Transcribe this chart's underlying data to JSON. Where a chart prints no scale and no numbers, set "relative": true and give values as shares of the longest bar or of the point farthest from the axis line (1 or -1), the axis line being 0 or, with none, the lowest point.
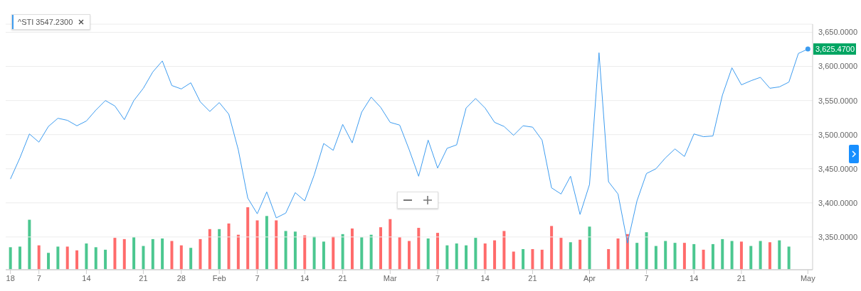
{
  "chart_data": [
    {
      "type": "line",
      "categories": [
        "18",
        null,
        null,
        "7",
        null,
        null,
        null,
        null,
        "14",
        null,
        null,
        null,
        null,
        null,
        "21",
        null,
        null,
        null,
        "28",
        null,
        null,
        null,
        "Feb",
        null,
        null,
        null,
        "7",
        null,
        null,
        null,
        null,
        "14",
        null,
        null,
        null,
        "21",
        null,
        null,
        null,
        null,
        "Mar",
        null,
        null,
        null,
        null,
        "7",
        null,
        null,
        null,
        null,
        "14",
        null,
        null,
        null,
        null,
        "21",
        null,
        null,
        null,
        null,
        null,
        "Apr",
        null,
        null,
        null,
        null,
        null,
        "7",
        null,
        null,
        null,
        null,
        "14",
        null,
        null,
        null,
        null,
        "21",
        null,
        null,
        null,
        null,
        null,
        null,
        "May"
      ],
      "series": [
        {
          "name": "^STI 3547.2300",
          "color": "#3d9cf0",
          "values": [
            3435,
            3466,
            3501,
            3489,
            3512,
            3524,
            3521,
            3513,
            3520,
            3536,
            3550,
            3542,
            3522,
            3550,
            3568,
            3592,
            3608,
            3572,
            3567,
            3576,
            3548,
            3534,
            3547,
            3530,
            3478,
            3407,
            3384,
            3416,
            3378,
            3385,
            3415,
            3403,
            3441,
            3487,
            3477,
            3515,
            3488,
            3533,
            3555,
            3540,
            3518,
            3514,
            3478,
            3439,
            3492,
            3451,
            3480,
            3485,
            3539,
            3553,
            3539,
            3518,
            3512,
            3499,
            3513,
            3511,
            3492,
            3422,
            3413,
            3439,
            3383,
            3427,
            3620,
            3431,
            3413,
            3341,
            3403,
            3443,
            3450,
            3466,
            3479,
            3468,
            3501,
            3497,
            3498,
            3558,
            3598,
            3573,
            3579,
            3584,
            3568,
            3570,
            3577,
            3619,
            3625.47
          ]
        }
      ],
      "ylim": [
        3302,
        3662
      ],
      "yticks": [
        {
          "value": 3350,
          "label": "3,350.0000"
        },
        {
          "value": 3400,
          "label": "3,400.0000"
        },
        {
          "value": 3450,
          "label": "3,450.0000"
        },
        {
          "value": 3500,
          "label": "3,500.0000"
        },
        {
          "value": 3550,
          "label": "3,550.0000"
        },
        {
          "value": 3600,
          "label": "3,600.0000"
        },
        {
          "value": 3650,
          "label": "3,650.0000"
        }
      ],
      "annotations": [
        {
          "text": "3,625.4700",
          "x": "May",
          "y": 3625.47
        }
      ],
      "grid": "y",
      "legend": "top left"
    },
    {
      "type": "bar",
      "relative": true,
      "categories": [
        null,
        null,
        null,
        null,
        null,
        null,
        null,
        null,
        null,
        null,
        null,
        null,
        null,
        null,
        null,
        null,
        null,
        null,
        null,
        null,
        null,
        null,
        null,
        null,
        null,
        null,
        null,
        null,
        null,
        null,
        null,
        null,
        null,
        null,
        null,
        null,
        null,
        null,
        null,
        null,
        null,
        null,
        null,
        null,
        null,
        null,
        null,
        null,
        null,
        null,
        null,
        null,
        null,
        null,
        null,
        null,
        null,
        null,
        null,
        null,
        null,
        null,
        null,
        null,
        null,
        null,
        null,
        null,
        null,
        null,
        null,
        null,
        null,
        null,
        null,
        null,
        null,
        null,
        null,
        null,
        null,
        null,
        null,
        null,
        null
      ],
      "values": [
        0.36,
        0.37,
        0.8,
        0.39,
        0.27,
        0.37,
        0.37,
        0.31,
        0.42,
        0.36,
        0.32,
        0.51,
        0.49,
        0.52,
        0.38,
        0.49,
        0.5,
        0.46,
        0.39,
        0.35,
        0.49,
        0.65,
        0.65,
        0.74,
        0.56,
        1,
        0.79,
        0.86,
        0.79,
        0.62,
        0.61,
        0.55,
        0.53,
        0.45,
        0.53,
        0.57,
        0.66,
        0.52,
        0.56,
        0.68,
        0.81,
        0.52,
        0.46,
        0.67,
        0.5,
        0.59,
        0.39,
        0.42,
        0.39,
        0.51,
        0.42,
        0.47,
        0.62,
        0.29,
        0.33,
        0.33,
        0.32,
        0.7,
        0.51,
        0.44,
        0.48,
        0.69,
        null,
        0.33,
        0.5,
        0.57,
        0.43,
        0.6,
        0.38,
        0.46,
        0.43,
        0.43,
        0.41,
        0.32,
        0.41,
        0.49,
        0.46,
        0.45,
        0.38,
        0.46,
        0.44,
        0.47,
        0.37,
        null,
        null
      ],
      "colors": [
        "#4cc790",
        "#4cc790",
        "#4cc790",
        "#ff6b6b",
        "#4cc790",
        "#4cc790",
        "#ff6b6b",
        "#ff6b6b",
        "#4cc790",
        "#4cc790",
        "#4cc790",
        "#ff6b6b",
        "#ff6b6b",
        "#4cc790",
        "#4cc790",
        "#4cc790",
        "#4cc790",
        "#ff6b6b",
        "#ff6b6b",
        "#4cc790",
        "#ff6b6b",
        "#ff6b6b",
        "#4cc790",
        "#ff6b6b",
        "#ff6b6b",
        "#ff6b6b",
        "#ff6b6b",
        "#4cc790",
        "#ff6b6b",
        "#4cc790",
        "#4cc790",
        "#ff6b6b",
        "#4cc790",
        "#4cc790",
        "#ff6b6b",
        "#4cc790",
        "#ff6b6b",
        "#4cc790",
        "#4cc790",
        "#ff6b6b",
        "#ff6b6b",
        "#ff6b6b",
        "#ff6b6b",
        "#ff6b6b",
        "#4cc790",
        "#ff6b6b",
        "#4cc790",
        "#4cc790",
        "#4cc790",
        "#4cc790",
        "#ff6b6b",
        "#ff6b6b",
        "#ff6b6b",
        "#ff6b6b",
        "#4cc790",
        "#ff6b6b",
        "#ff6b6b",
        "#ff6b6b",
        "#ff6b6b",
        "#4cc790",
        "#ff6b6b",
        "#4cc790",
        null,
        "#ff6b6b",
        "#ff6b6b",
        "#ff6b6b",
        "#4cc790",
        "#4cc790",
        "#4cc790",
        "#4cc790",
        "#4cc790",
        "#ff6b6b",
        "#4cc790",
        "#ff6b6b",
        "#4cc790",
        "#4cc790",
        "#4cc790",
        "#ff6b6b",
        "#4cc790",
        "#4cc790",
        "#ff6b6b",
        "#4cc790",
        "#4cc790",
        null,
        null
      ]
    }
  ]
}
